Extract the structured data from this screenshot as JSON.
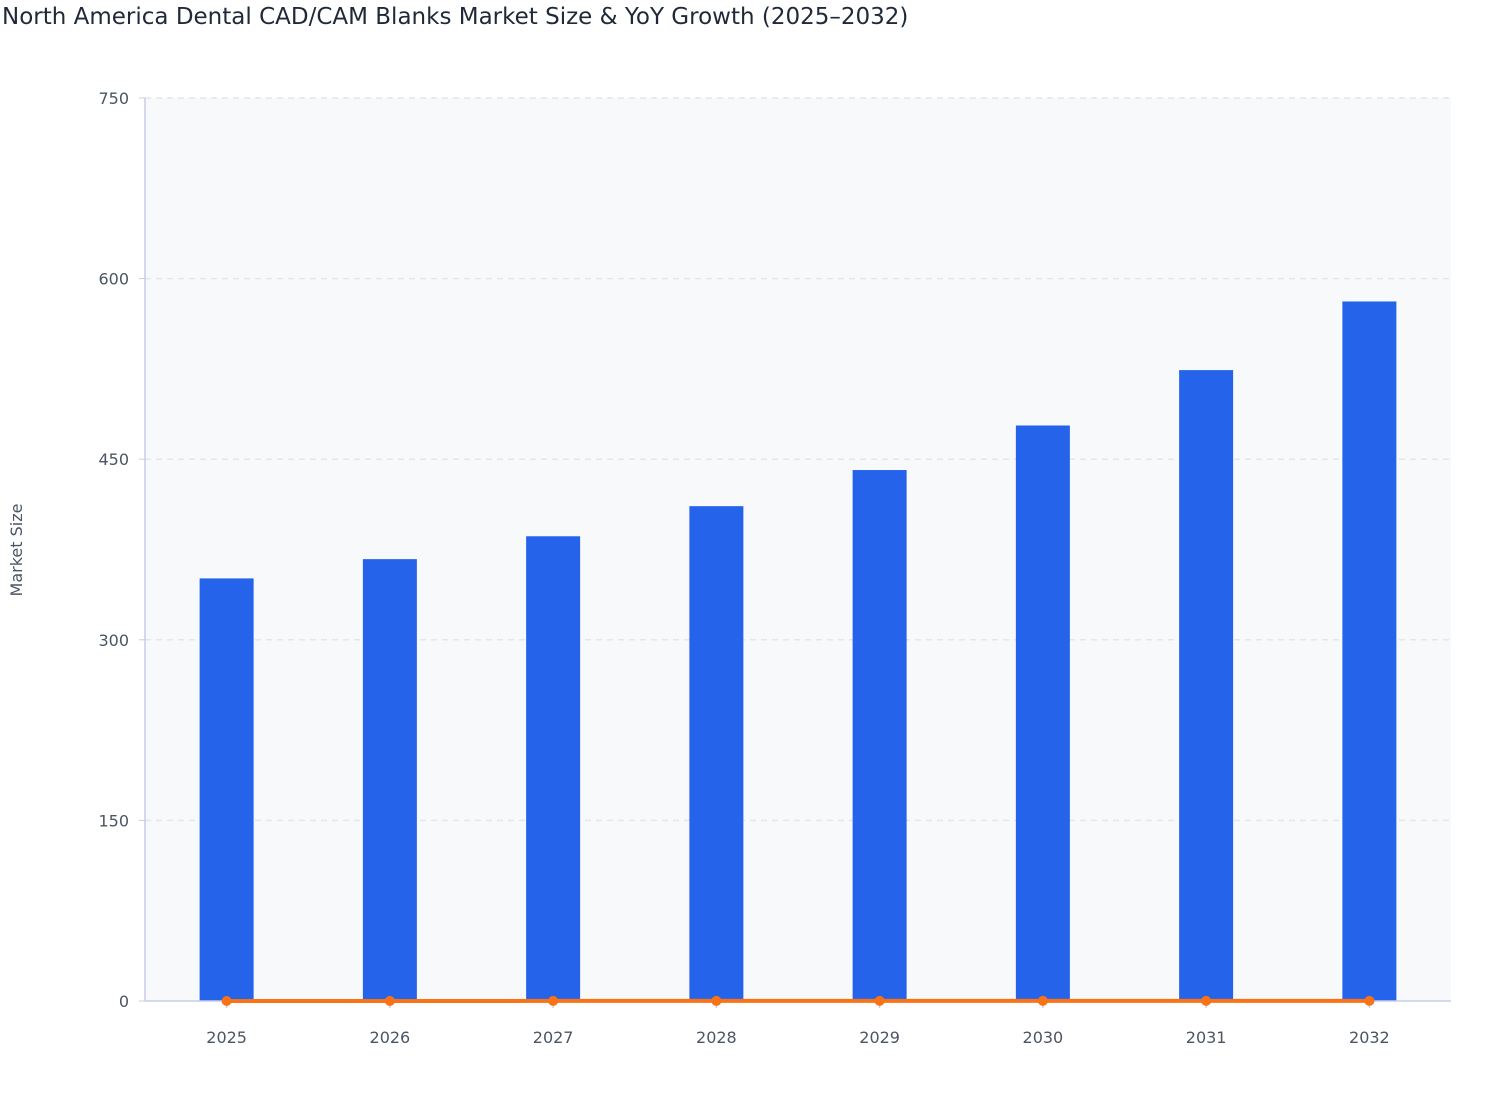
{
  "chart_data": {
    "type": "bar",
    "title": "North America Dental CAD/CAM Blanks Market Size & YoY Growth (2025–2032)",
    "xlabel": "",
    "ylabel": "Market Size",
    "ylim": [
      0,
      750
    ],
    "yticks": [
      0,
      150,
      300,
      450,
      600,
      750
    ],
    "categories": [
      "2025",
      "2026",
      "2027",
      "2028",
      "2029",
      "2030",
      "2031",
      "2032"
    ],
    "grid": true,
    "series": [
      {
        "type": "bar",
        "values": [
          351,
          367,
          386,
          411,
          441,
          478,
          524,
          581
        ],
        "color": "#2563eb"
      },
      {
        "type": "line",
        "values": [
          0,
          0.046,
          0.052,
          0.065,
          0.073,
          0.084,
          0.096,
          0.109
        ],
        "color": "#f97316"
      }
    ],
    "plot_background": "#f8f9fb"
  }
}
